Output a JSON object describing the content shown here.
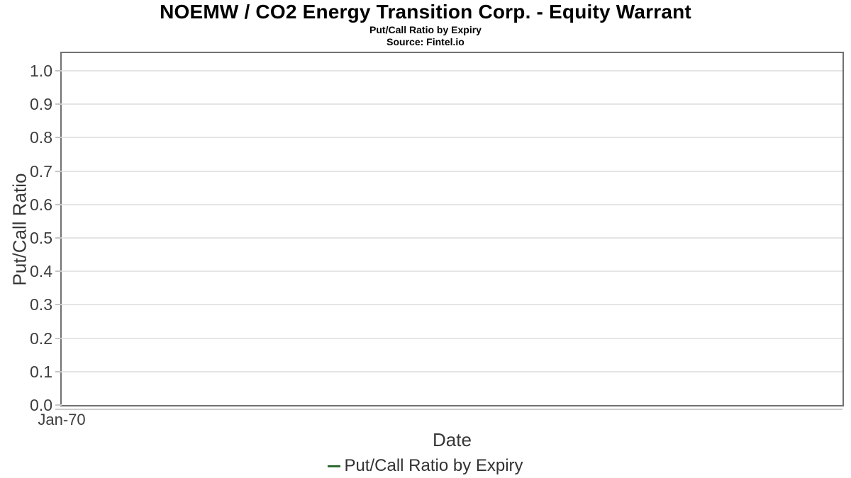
{
  "chart_data": {
    "type": "line",
    "title": "NOEMW / CO2 Energy Transition Corp. - Equity Warrant",
    "subtitle": "Put/Call Ratio by Expiry",
    "source": "Source: Fintel.io",
    "xlabel": "Date",
    "ylabel": "Put/Call Ratio",
    "x_tick_labels": [
      "Jan-70"
    ],
    "y_tick_labels": [
      "0.0",
      "0.1",
      "0.2",
      "0.3",
      "0.4",
      "0.5",
      "0.6",
      "0.7",
      "0.8",
      "0.9",
      "1.0"
    ],
    "ylim": [
      0,
      1.053
    ],
    "grid": true,
    "legend_position": "bottom-center",
    "series": [
      {
        "name": "Put/Call Ratio by Expiry",
        "color": "#2f6a32",
        "x": [],
        "values": []
      }
    ]
  },
  "legend": {
    "marker_color": "#2f6a32",
    "label": "Put/Call Ratio by Expiry"
  }
}
